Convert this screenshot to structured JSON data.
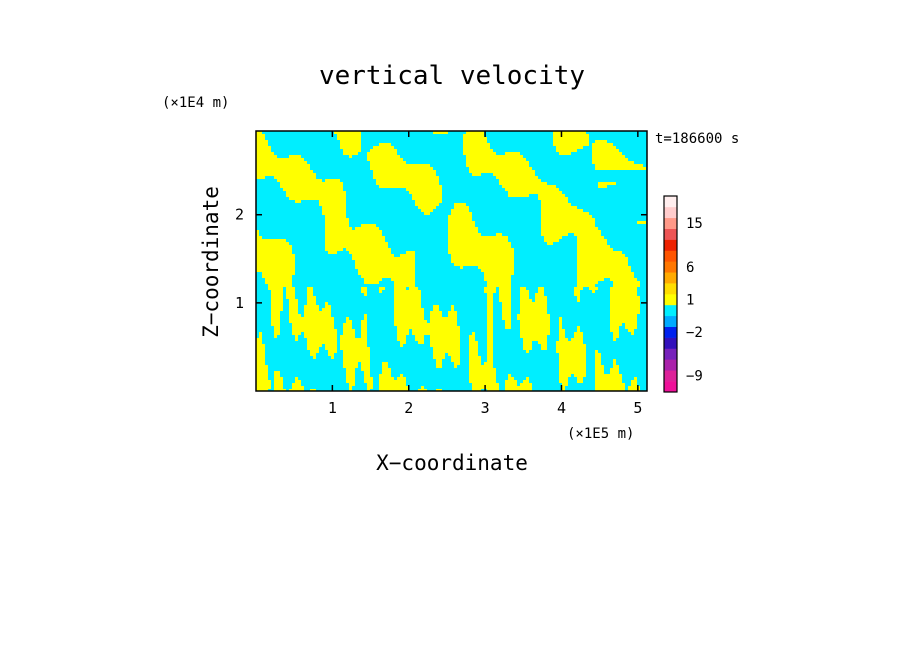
{
  "chart_data": {
    "type": "heatmap",
    "title": "vertical velocity",
    "xlabel": "X−coordinate",
    "ylabel": "Z−coordinate",
    "x_unit": "(×1E5 m)",
    "y_unit": "(×1E4 m)",
    "time_label": "t=186600 s",
    "xlim": [
      0,
      5.12
    ],
    "ylim": [
      0,
      2.95
    ],
    "x_ticks": [
      1,
      2,
      3,
      4,
      5
    ],
    "y_ticks": [
      1,
      2
    ],
    "dominant_colors": [
      "#00eeff",
      "#ffff00"
    ],
    "colorbar": {
      "levels": [
        {
          "color": "#ee1199"
        },
        {
          "color": "#dd2299"
        },
        {
          "color": "#aa22aa"
        },
        {
          "color": "#7722bb"
        },
        {
          "color": "#3311bb"
        },
        {
          "color": "#0022ee"
        },
        {
          "color": "#00aaff"
        },
        {
          "color": "#00eeff"
        },
        {
          "color": "#ffff00"
        },
        {
          "color": "#ffdd00"
        },
        {
          "color": "#ffaa00"
        },
        {
          "color": "#ff7700"
        },
        {
          "color": "#ff5500"
        },
        {
          "color": "#ee2200"
        },
        {
          "color": "#ee5555"
        },
        {
          "color": "#ff9988"
        },
        {
          "color": "#ffcccc"
        },
        {
          "color": "#ffeeee"
        }
      ],
      "labels": [
        "−9",
        "−2",
        "1",
        "6",
        "15"
      ],
      "label_levels": [
        1.5,
        5.5,
        8.5,
        11.5,
        15.5
      ]
    }
  }
}
